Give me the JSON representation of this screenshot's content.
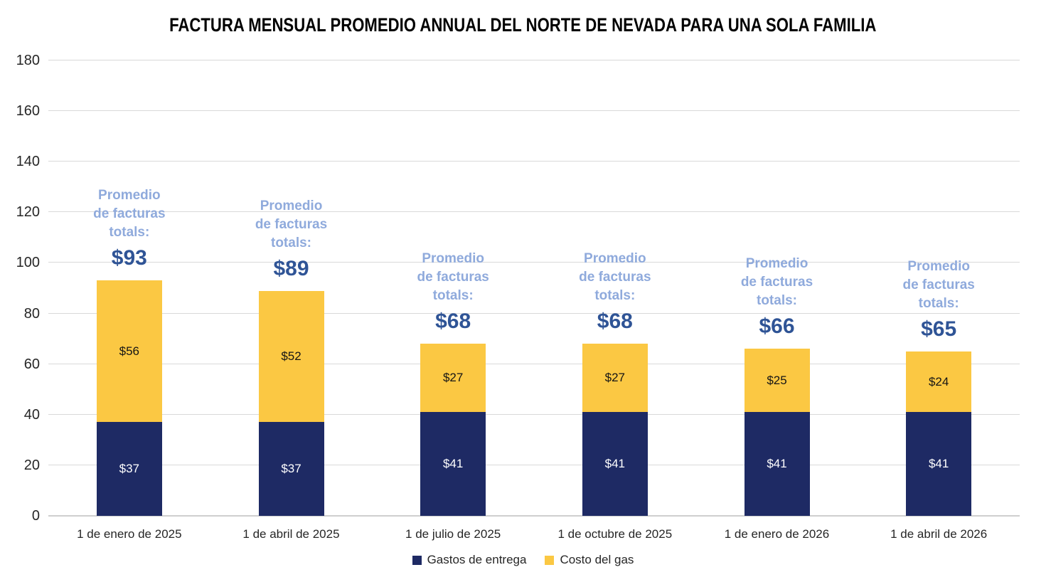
{
  "chart_data": {
    "type": "bar",
    "stacked": true,
    "title": "FACTURA MENSUAL PROMEDIO ANNUAL DEL NORTE DE NEVADA PARA UNA SOLA FAMILIA",
    "categories": [
      "1 de enero de 2025",
      "1 de abril de 2025",
      "1 de julio de 2025",
      "1 de octubre de 2025",
      "1 de enero de 2026",
      "1 de abril de 2026"
    ],
    "series": [
      {
        "name": "Gastos de entrega",
        "color": "#1E2A64",
        "label_color": "#FFFFFF",
        "values": [
          37,
          37,
          41,
          41,
          41,
          41
        ],
        "labels": [
          "$37",
          "$37",
          "$41",
          "$41",
          "$41",
          "$41"
        ]
      },
      {
        "name": "Costo del gas",
        "color": "#FBC843",
        "label_color": "#151515",
        "values": [
          56,
          52,
          27,
          27,
          25,
          24
        ],
        "labels": [
          "$56",
          "$52",
          "$27",
          "$27",
          "$25",
          "$24"
        ]
      }
    ],
    "totals": [
      93,
      89,
      68,
      68,
      66,
      65
    ],
    "total_labels": [
      "$93",
      "$89",
      "$68",
      "$68",
      "$66",
      "$65"
    ],
    "annotation_lines": [
      "Promedio",
      "de facturas",
      "totals:"
    ],
    "ylim": [
      0,
      180
    ],
    "ytick_step": 20,
    "grid": true,
    "legend_position": "bottom",
    "colors": {
      "gridline": "#D9D9D9",
      "axis_text": "#262626",
      "annotation_text": "#8FAADC",
      "total_text": "#2F5496",
      "title_text": "#000000"
    }
  }
}
